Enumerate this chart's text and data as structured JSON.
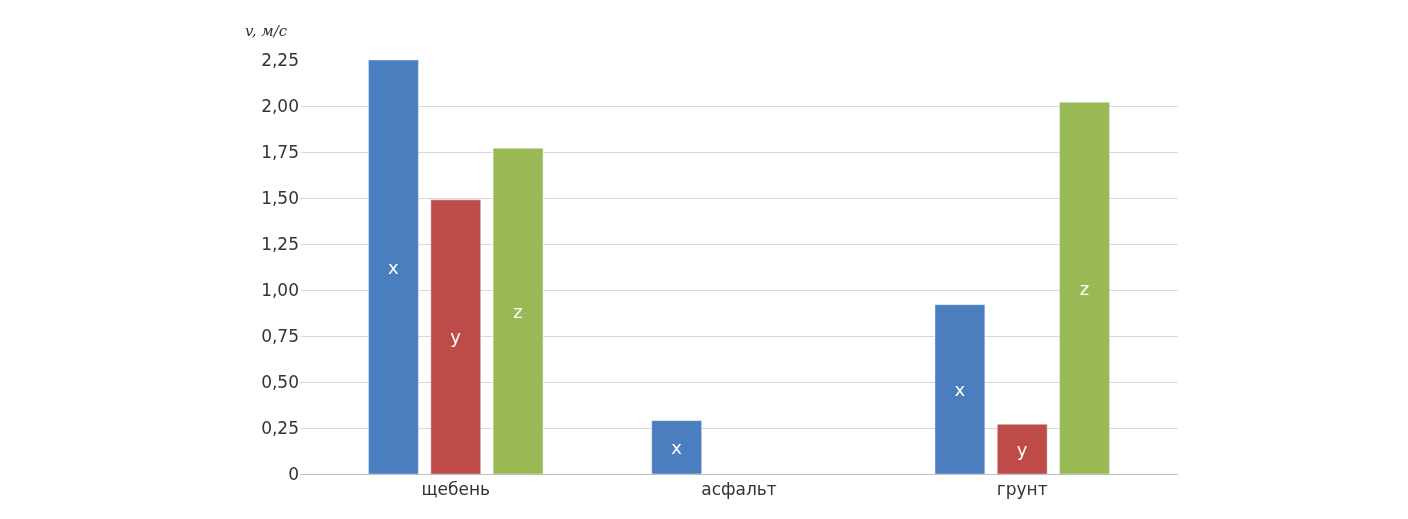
{
  "chart_data": {
    "type": "bar",
    "ylabel": "v, м/с",
    "categories": [
      "щебень",
      "асфальт",
      "грунт"
    ],
    "series": [
      {
        "name": "x",
        "color": "#4a7ebf",
        "values": [
          2.25,
          0.29,
          0.92
        ]
      },
      {
        "name": "y",
        "color": "#be4b48",
        "values": [
          1.49,
          null,
          0.27
        ]
      },
      {
        "name": "z",
        "color": "#98b954",
        "values": [
          1.77,
          null,
          2.02
        ]
      }
    ],
    "ylim": [
      0,
      2.25
    ],
    "yticks": [
      0,
      {
        "value": 0.25,
        "label": "0,25"
      },
      {
        "value": 0.5,
        "label": "0,50"
      },
      {
        "value": 0.75,
        "label": "0,75"
      },
      {
        "value": 1,
        "label": "1,00"
      },
      {
        "value": 1.25,
        "label": "1,25"
      },
      {
        "value": 1.5,
        "label": "1,50"
      },
      {
        "value": 1.75,
        "label": "1,75"
      },
      {
        "value": 2,
        "label": "2,00"
      },
      {
        "value": 2.25,
        "label": "2,25"
      }
    ],
    "grid": "y",
    "legend": false
  }
}
